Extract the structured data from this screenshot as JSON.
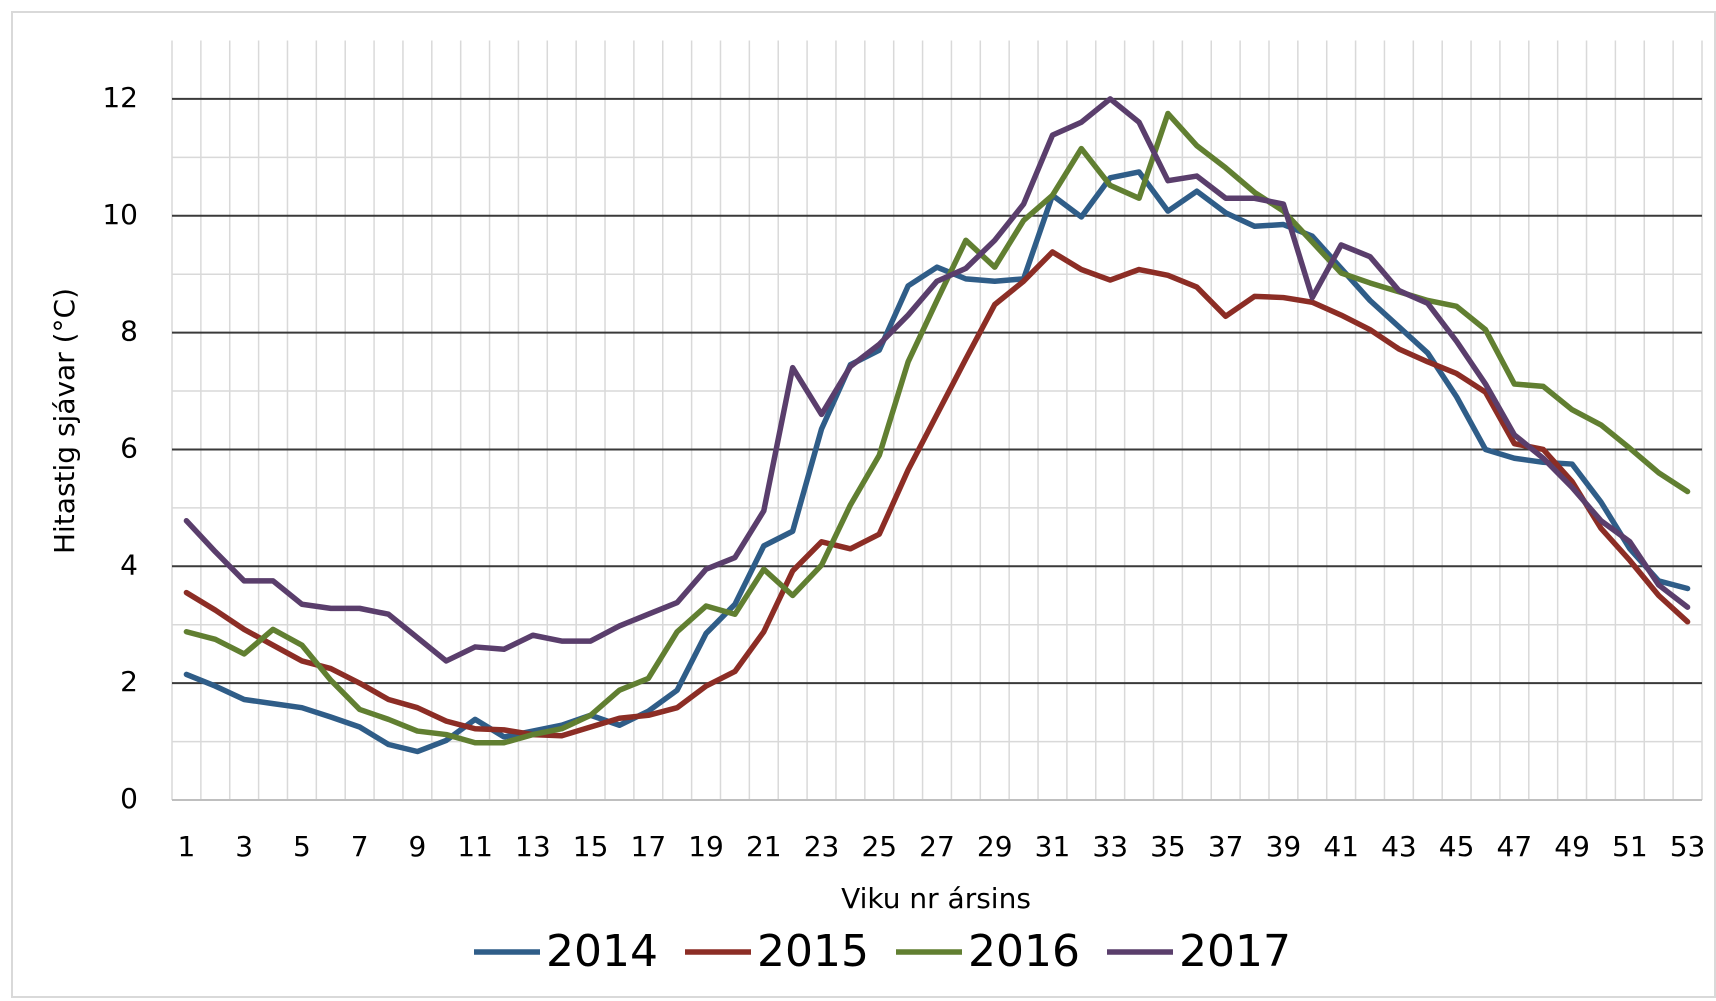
{
  "chart_data": {
    "type": "line",
    "x_label": "Viku nr ársins",
    "y_label": "Hitastig sjávar (°C)",
    "categories": [
      "1",
      null,
      "3",
      null,
      "5",
      null,
      "7",
      null,
      "9",
      null,
      "11",
      null,
      "13",
      null,
      "15",
      null,
      "17",
      null,
      "19",
      null,
      "21",
      null,
      "23",
      null,
      "25",
      null,
      "27",
      null,
      "29",
      null,
      "31",
      null,
      "33",
      null,
      "35",
      null,
      "37",
      null,
      "39",
      null,
      "41",
      null,
      "43",
      null,
      "45",
      null,
      "47",
      null,
      "49",
      null,
      "51",
      null,
      "53"
    ],
    "ylim": [
      0,
      13
    ],
    "yticks": [
      0,
      2,
      4,
      6,
      8,
      10,
      12
    ],
    "grid": true,
    "minor_grid": true,
    "legend": "bottom",
    "series": [
      {
        "name": "2014",
        "color": "#2f5d88",
        "values": [
          2.15,
          1.95,
          1.72,
          1.65,
          1.58,
          1.42,
          1.25,
          0.95,
          0.83,
          1.02,
          1.38,
          1.08,
          1.18,
          1.28,
          1.45,
          1.28,
          1.52,
          1.88,
          2.85,
          3.35,
          4.35,
          4.6,
          6.35,
          7.45,
          7.7,
          8.8,
          9.12,
          8.92,
          8.88,
          8.92,
          10.35,
          9.98,
          10.65,
          10.75,
          10.08,
          10.42,
          10.05,
          9.82,
          9.85,
          9.65,
          9.1,
          8.55,
          8.1,
          7.65,
          6.9,
          6.0,
          5.85,
          5.78,
          5.75,
          5.1,
          4.3,
          3.75,
          3.62
        ]
      },
      {
        "name": "2015",
        "color": "#8c2d25",
        "values": [
          3.55,
          3.25,
          2.92,
          2.65,
          2.38,
          2.25,
          2.0,
          1.72,
          1.58,
          1.35,
          1.22,
          1.2,
          1.12,
          1.1,
          1.25,
          1.4,
          1.45,
          1.58,
          1.95,
          2.2,
          2.88,
          3.92,
          4.42,
          4.3,
          4.55,
          5.65,
          6.6,
          7.55,
          8.48,
          8.88,
          9.38,
          9.08,
          8.9,
          9.08,
          8.98,
          8.78,
          8.28,
          8.62,
          8.6,
          8.52,
          8.3,
          8.05,
          7.72,
          7.5,
          7.3,
          6.98,
          6.1,
          6.0,
          5.45,
          4.65,
          4.1,
          3.5,
          3.05
        ]
      },
      {
        "name": "2016",
        "color": "#617f31",
        "values": [
          2.88,
          2.75,
          2.5,
          2.92,
          2.65,
          2.05,
          1.55,
          1.38,
          1.18,
          1.12,
          0.98,
          0.98,
          1.12,
          1.22,
          1.45,
          1.88,
          2.08,
          2.88,
          3.32,
          3.18,
          3.95,
          3.5,
          4.02,
          5.05,
          5.9,
          7.5,
          8.55,
          9.58,
          9.12,
          9.92,
          10.35,
          11.15,
          10.52,
          10.3,
          11.75,
          11.2,
          10.82,
          10.4,
          10.08,
          9.55,
          9.02,
          8.85,
          8.7,
          8.55,
          8.45,
          8.05,
          7.12,
          7.08,
          6.68,
          6.42,
          6.02,
          5.6,
          5.28
        ]
      },
      {
        "name": "2017",
        "color": "#5a3e6c",
        "values": [
          4.78,
          4.25,
          3.75,
          3.75,
          3.35,
          3.28,
          3.28,
          3.18,
          2.78,
          2.38,
          2.62,
          2.58,
          2.82,
          2.72,
          2.72,
          2.98,
          3.18,
          3.38,
          3.95,
          4.15,
          4.95,
          7.4,
          6.6,
          7.42,
          7.8,
          8.3,
          8.88,
          9.1,
          9.58,
          10.2,
          11.38,
          11.6,
          12.0,
          11.6,
          10.6,
          10.68,
          10.3,
          10.3,
          10.2,
          8.6,
          9.5,
          9.3,
          8.72,
          8.5,
          7.85,
          7.12,
          6.25,
          5.85,
          5.35,
          4.78,
          4.42,
          3.68,
          3.3
        ]
      }
    ]
  }
}
